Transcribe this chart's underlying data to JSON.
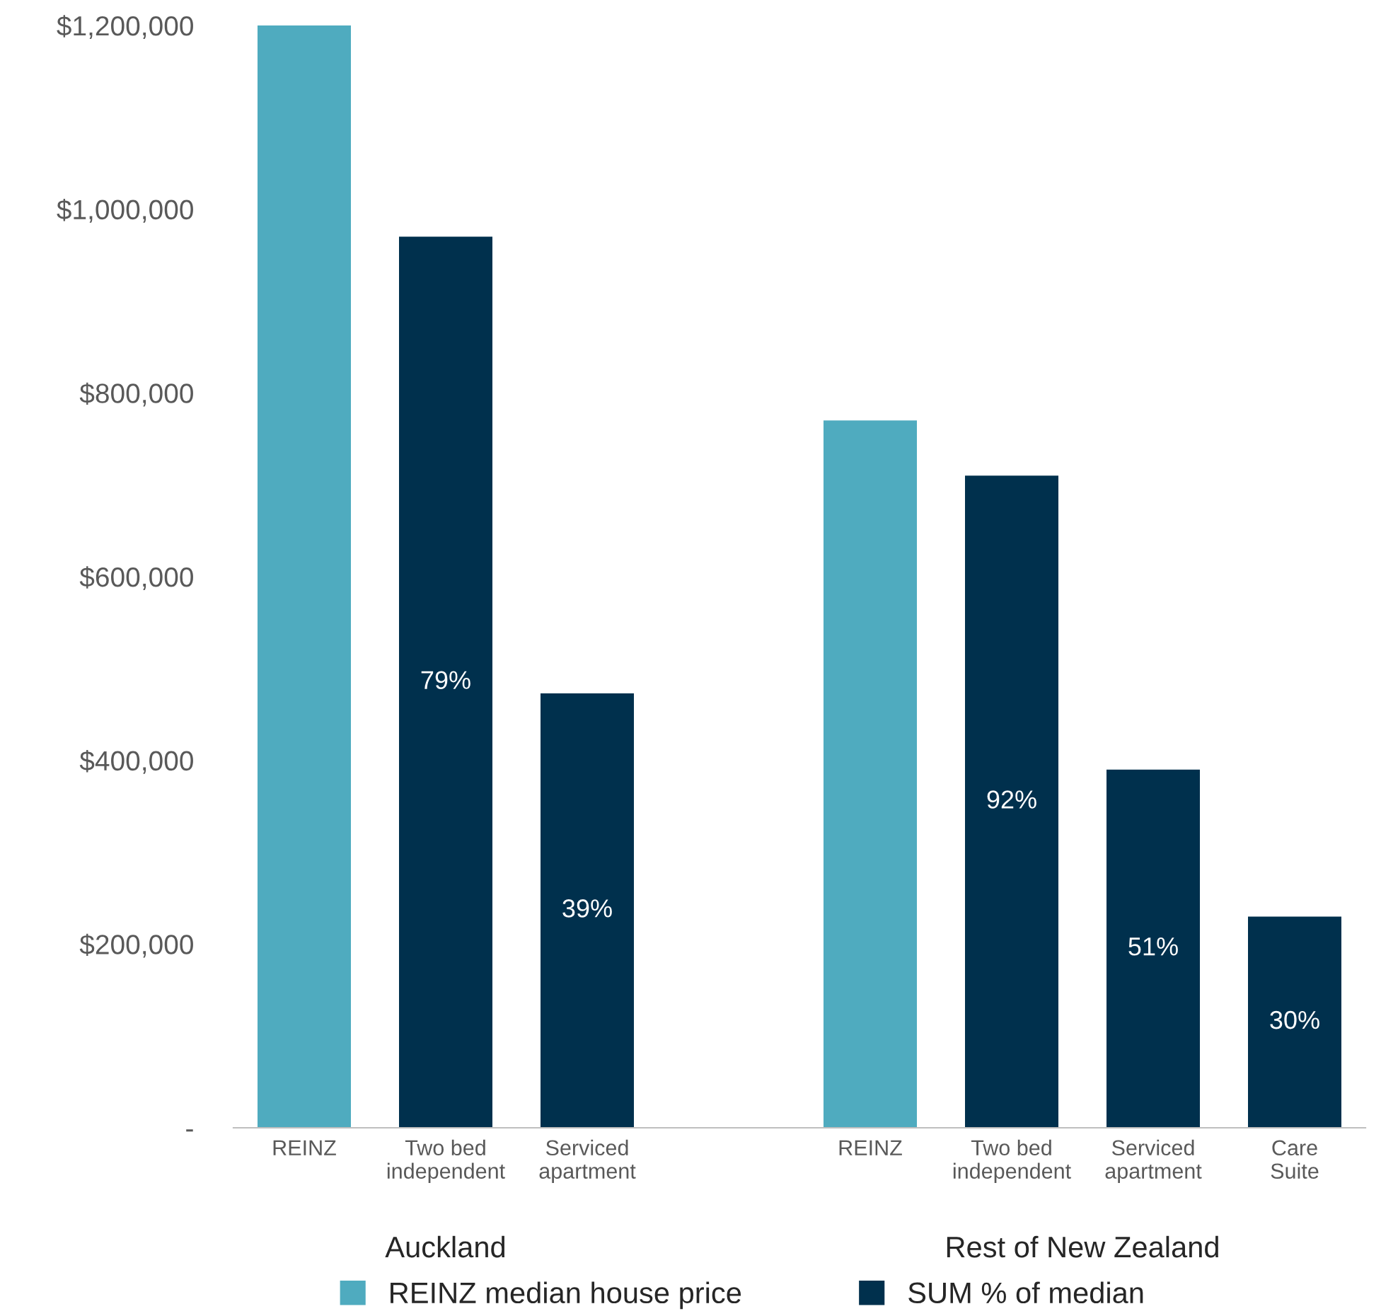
{
  "chart_data": {
    "type": "bar",
    "categories": [
      "REINZ",
      "Two bed\nindependent",
      "Serviced\napartment",
      null,
      "REINZ",
      "Two bed\nindependent",
      "Serviced\napartment",
      "Care\nSuite"
    ],
    "series": [
      {
        "name": "REINZ median house price",
        "color": "#4fabbf",
        "values": [
          1200000,
          null,
          null,
          null,
          770000,
          null,
          null,
          null
        ]
      },
      {
        "name": "SUM % of median",
        "color": "#00304d",
        "values": [
          null,
          970000,
          473000,
          null,
          null,
          710000,
          390000,
          230000
        ]
      }
    ],
    "annotations": [
      "Auckland",
      "Rest of New Zealand",
      "79%",
      "39%",
      "92%",
      "51%",
      "30%"
    ],
    "ylim": [
      0,
      1200000
    ],
    "yticks": [
      {
        "value": 0,
        "label": "-"
      },
      {
        "value": 200000,
        "label": "$200,000"
      },
      {
        "value": 400000,
        "label": "$400,000"
      },
      {
        "value": 600000,
        "label": "$600,000"
      },
      {
        "value": 800000,
        "label": "$800,000"
      },
      {
        "value": 1000000,
        "label": "$1,000,000"
      },
      {
        "value": 1200000,
        "label": "$1,200,000"
      }
    ],
    "grid": false,
    "legend": "bottom"
  }
}
